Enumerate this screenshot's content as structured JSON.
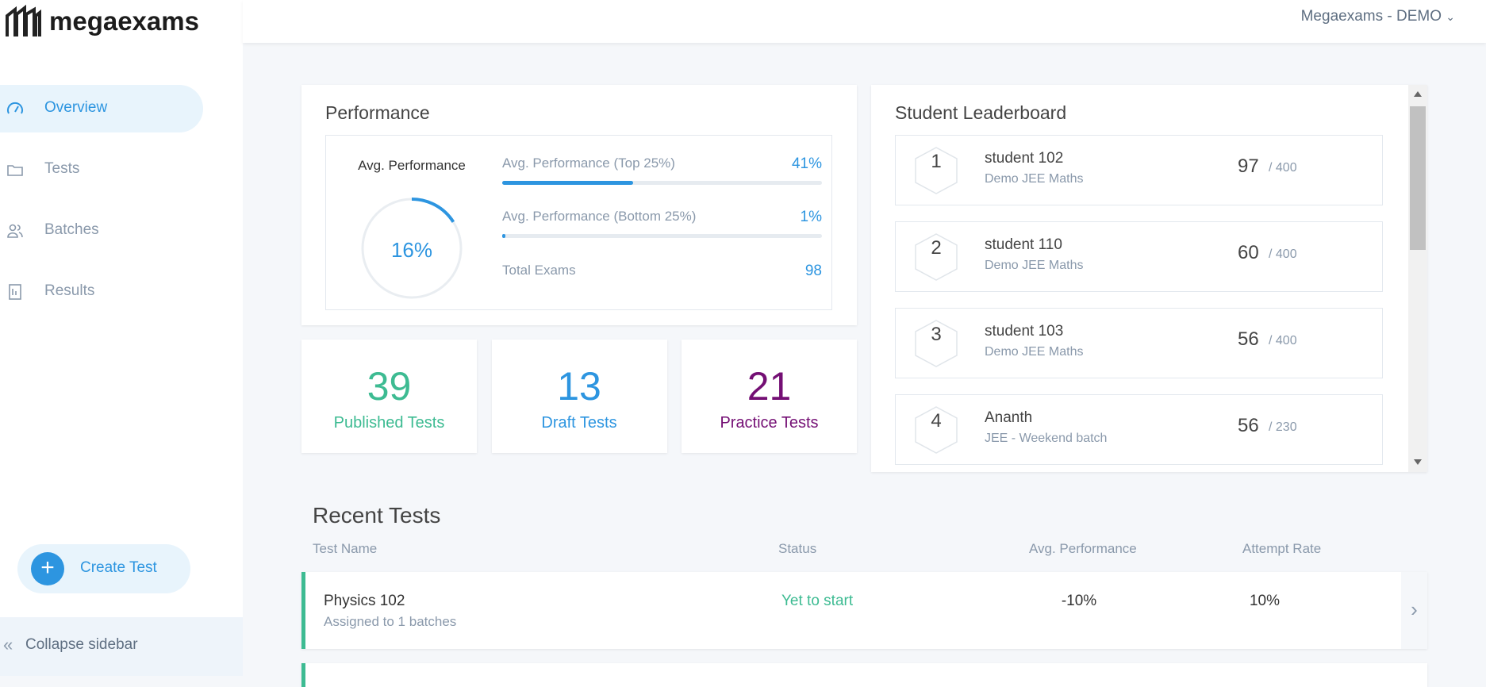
{
  "brand": "megaexams",
  "account": "Megaexams - DEMO",
  "nav": [
    "Overview",
    "Tests",
    "Batches",
    "Results"
  ],
  "create_button": "Create Test",
  "collapse": "Collapse sidebar",
  "performance": {
    "title": "Performance",
    "gauge_label": "Avg. Performance",
    "gauge_value": 16,
    "gauge_value_label": "16%",
    "bars": [
      {
        "label": "Avg. Performance (Top 25%)",
        "value": 41,
        "value_label": "41%"
      },
      {
        "label": "Avg. Performance (Bottom 25%)",
        "value": 1,
        "value_label": "1%"
      }
    ],
    "total_label": "Total Exams",
    "total_value": 98
  },
  "stats": [
    {
      "value": 39,
      "label": "Published Tests",
      "color": "#3dbb92"
    },
    {
      "value": 13,
      "label": "Draft Tests",
      "color": "#2d95e0"
    },
    {
      "value": 21,
      "label": "Practice Tests",
      "color": "#740f74"
    }
  ],
  "leaderboard": {
    "title": "Student Leaderboard",
    "rows": [
      {
        "rank": 1,
        "name": "student 102",
        "batch": "Demo JEE Maths",
        "score": 97,
        "total": "/ 400"
      },
      {
        "rank": 2,
        "name": "student 110",
        "batch": "Demo JEE Maths",
        "score": 60,
        "total": "/ 400"
      },
      {
        "rank": 3,
        "name": "student 103",
        "batch": "Demo JEE Maths",
        "score": 56,
        "total": "/ 400"
      },
      {
        "rank": 4,
        "name": "Ananth",
        "batch": "JEE - Weekend batch",
        "score": 56,
        "total": "/ 230"
      }
    ]
  },
  "recent": {
    "title": "Recent Tests",
    "columns": [
      "Test Name",
      "Status",
      "Avg. Performance",
      "Attempt Rate"
    ],
    "rows": [
      {
        "name": "Physics 102",
        "subtitle": "Assigned to 1 batches",
        "status": "Yet to start",
        "avg": "-10%",
        "attempt": "10%"
      }
    ]
  }
}
